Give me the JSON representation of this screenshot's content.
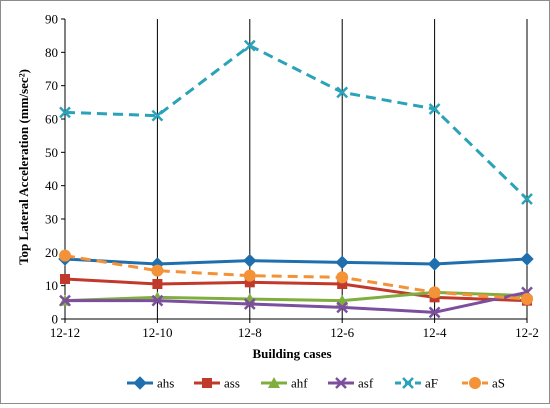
{
  "chart_data": {
    "type": "line",
    "title": "",
    "xlabel": "Building cases",
    "ylabel": "Top Lateral Acceleration (mm/sec²)",
    "categories": [
      "12-12",
      "12-10",
      "12-8",
      "12-6",
      "12-4",
      "12-2"
    ],
    "ylim": [
      0,
      90
    ],
    "yticks": [
      0,
      10,
      20,
      30,
      40,
      50,
      60,
      70,
      80,
      90
    ],
    "grid": "vertical",
    "legend_position": "bottom",
    "series": [
      {
        "name": "ahs",
        "values": [
          18,
          16.5,
          17.5,
          17,
          16.5,
          18
        ],
        "color": "#1f6fae",
        "marker": "diamond",
        "dash": "solid"
      },
      {
        "name": "ass",
        "values": [
          12,
          10.5,
          11,
          10.5,
          6.5,
          5.5
        ],
        "color": "#c0392b",
        "marker": "square",
        "dash": "solid"
      },
      {
        "name": "ahf",
        "values": [
          5.5,
          6.5,
          6,
          5.5,
          8,
          7
        ],
        "color": "#7fae3f",
        "marker": "triangle",
        "dash": "solid"
      },
      {
        "name": "asf",
        "values": [
          5.5,
          5.5,
          4.5,
          3.5,
          2,
          8
        ],
        "color": "#7b4f9d",
        "marker": "x",
        "dash": "solid"
      },
      {
        "name": "aF",
        "values": [
          62,
          61,
          82,
          68,
          63,
          36
        ],
        "color": "#2aa3b8",
        "marker": "x",
        "dash": "dashed"
      },
      {
        "name": "aS",
        "values": [
          19,
          14.5,
          13,
          12.5,
          8,
          6
        ],
        "color": "#f39237",
        "marker": "circle",
        "dash": "dashed"
      }
    ]
  }
}
